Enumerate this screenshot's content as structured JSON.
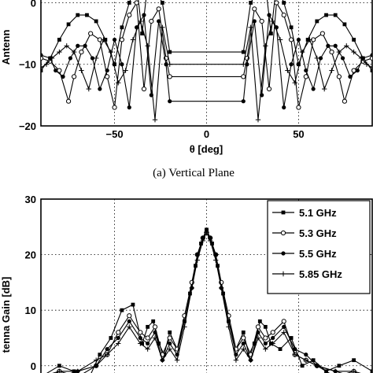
{
  "caption_a": "(a)   Vertical Plane",
  "chart_data": [
    {
      "type": "line",
      "xlabel": "θ [deg]",
      "ylabel": "Antenn",
      "xlim": [
        -90,
        90
      ],
      "ylim": [
        -20,
        3
      ],
      "xticks": [
        -50,
        0,
        50
      ],
      "yticks": [
        -20,
        -10,
        0
      ],
      "grid": true,
      "series": [
        {
          "marker": "square",
          "x": [
            -90,
            -85,
            -80,
            -75,
            -70,
            -65,
            -60,
            -55,
            -50,
            -46,
            -42,
            -38,
            -35,
            -32,
            -28,
            -24,
            -20,
            20,
            24,
            28,
            32,
            35,
            38,
            42,
            46,
            50,
            55,
            60,
            65,
            70,
            75,
            80,
            85,
            90
          ],
          "y": [
            -11,
            -9,
            -6,
            -3.5,
            -2,
            -2,
            -3,
            -6,
            -10,
            -4,
            0,
            3,
            -5,
            3,
            2,
            0,
            -8,
            -8,
            0,
            2,
            3,
            -5,
            3,
            0,
            -4,
            -10,
            -6,
            -3,
            -2,
            -2,
            -3.5,
            -6,
            -9,
            -11
          ]
        },
        {
          "marker": "circle",
          "x": [
            -90,
            -85,
            -80,
            -75,
            -72,
            -68,
            -63,
            -58,
            -54,
            -50,
            -46,
            -42,
            -38,
            -34,
            -30,
            -26,
            -22,
            -20,
            20,
            22,
            26,
            30,
            34,
            38,
            42,
            46,
            50,
            54,
            58,
            63,
            68,
            72,
            75,
            80,
            85,
            90
          ],
          "y": [
            -9,
            -9.5,
            -11,
            -16,
            -12,
            -8,
            -5,
            -6,
            -12,
            -17,
            -6,
            -2,
            0,
            -14,
            -3,
            -1,
            -9,
            -12,
            -12,
            -9,
            -1,
            -3,
            -14,
            0,
            -2,
            -6,
            -17,
            -12,
            -6,
            -5,
            -8,
            -12,
            -16,
            -11,
            -9.5,
            -9
          ]
        },
        {
          "marker": "dot",
          "x": [
            -90,
            -85,
            -82,
            -78,
            -74,
            -70,
            -66,
            -62,
            -58,
            -54,
            -50,
            -46,
            -42,
            -38,
            -34,
            -30,
            -26,
            -22,
            -20,
            20,
            22,
            26,
            30,
            34,
            38,
            42,
            46,
            50,
            54,
            58,
            62,
            66,
            70,
            74,
            78,
            82,
            85,
            90
          ],
          "y": [
            -8.5,
            -9,
            -11,
            -12,
            -9,
            -7,
            -7,
            -9,
            -14,
            -11,
            -6,
            -10,
            -17,
            -4,
            -2,
            -15,
            -3,
            -10,
            -16,
            -16,
            -10,
            -3,
            -15,
            -2,
            -4,
            -17,
            -10,
            -6,
            -11,
            -14,
            -9,
            -7,
            -7,
            -9,
            -12,
            -11,
            -9,
            -8.5
          ]
        },
        {
          "marker": "plus",
          "x": [
            -90,
            -87,
            -84,
            -80,
            -76,
            -72,
            -68,
            -64,
            -60,
            -56,
            -52,
            -48,
            -44,
            -40,
            -36,
            -32,
            -28,
            -24,
            -20,
            20,
            24,
            28,
            32,
            36,
            40,
            44,
            48,
            52,
            56,
            60,
            64,
            68,
            72,
            76,
            80,
            84,
            87,
            90
          ],
          "y": [
            -10.5,
            -10,
            -9,
            -8,
            -7,
            -8,
            -11,
            -14,
            -9,
            -6,
            -8,
            -13,
            -11,
            -6,
            -3,
            -7,
            -19,
            -4,
            -10,
            -10,
            -4,
            -19,
            -7,
            -3,
            -6,
            -11,
            -13,
            -8,
            -6,
            -9,
            -14,
            -11,
            -8,
            -7,
            -8,
            -9,
            -10,
            -10.5
          ]
        }
      ]
    },
    {
      "type": "line",
      "xlabel": "",
      "ylabel": "tenna Gain [dB]",
      "xlim": [
        -90,
        90
      ],
      "ylim": [
        -4,
        30
      ],
      "yticks": [
        0,
        10,
        20,
        30
      ],
      "grid": true,
      "legend": {
        "position": "top-right",
        "entries": [
          {
            "label": "5.1 GHz",
            "marker": "square"
          },
          {
            "label": "5.3 GHz",
            "marker": "circle"
          },
          {
            "label": "5.5 GHz",
            "marker": "dot"
          },
          {
            "label": "5.85 GHz",
            "marker": "plus"
          }
        ]
      },
      "series": [
        {
          "name": "5.1 GHz",
          "marker": "square",
          "x": [
            -90,
            -80,
            -72,
            -65,
            -58,
            -52,
            -46,
            -40,
            -35,
            -32,
            -29,
            -26,
            -23,
            -20,
            -16,
            -12,
            -9,
            -6,
            -3,
            0,
            3,
            6,
            9,
            12,
            16,
            20,
            23,
            26,
            29,
            32,
            35,
            40,
            46,
            52,
            58,
            65,
            72,
            80,
            90
          ],
          "y": [
            -2,
            0,
            -1,
            -3,
            2,
            5,
            10,
            11,
            4,
            7,
            8,
            4,
            2,
            6,
            3,
            8,
            13,
            18,
            22,
            24.5,
            22,
            18,
            13,
            8,
            3,
            6,
            2,
            4,
            8,
            7,
            4,
            3,
            5,
            0,
            1,
            -1,
            0,
            1,
            -1
          ]
        },
        {
          "name": "5.3 GHz",
          "marker": "circle",
          "x": [
            -90,
            -80,
            -70,
            -60,
            -54,
            -48,
            -42,
            -36,
            -32,
            -28,
            -24,
            -20,
            -16,
            -12,
            -8,
            -5,
            -2,
            0,
            2,
            5,
            8,
            12,
            16,
            20,
            24,
            28,
            32,
            36,
            42,
            48,
            54,
            60,
            70,
            80,
            90
          ],
          "y": [
            -3,
            -1,
            -2,
            0,
            2,
            6,
            9,
            6,
            5,
            7,
            2,
            5,
            3,
            9,
            15,
            20,
            23,
            24,
            23,
            20,
            15,
            9,
            3,
            5,
            2,
            7,
            5,
            6,
            8,
            2,
            1,
            0,
            -2,
            -1,
            -3
          ]
        },
        {
          "name": "5.5 GHz",
          "marker": "dot",
          "x": [
            -90,
            -80,
            -70,
            -60,
            -54,
            -48,
            -42,
            -36,
            -32,
            -28,
            -24,
            -20,
            -16,
            -12,
            -8,
            -5,
            -2,
            0,
            2,
            5,
            8,
            12,
            16,
            20,
            24,
            28,
            32,
            36,
            42,
            48,
            54,
            60,
            70,
            80,
            90
          ],
          "y": [
            -3,
            -2,
            -1,
            0,
            3,
            5,
            8,
            5,
            4,
            6,
            1,
            4,
            2,
            8,
            14,
            20,
            23,
            24.5,
            23,
            20,
            14,
            8,
            2,
            4,
            1,
            6,
            4,
            5,
            7,
            3,
            2,
            0,
            -1,
            -2,
            -3
          ]
        },
        {
          "name": "5.85 GHz",
          "marker": "plus",
          "x": [
            -90,
            -80,
            -70,
            -60,
            -54,
            -48,
            -42,
            -36,
            -32,
            -28,
            -24,
            -20,
            -16,
            -12,
            -8,
            -5,
            -2,
            0,
            2,
            5,
            8,
            12,
            16,
            20,
            24,
            28,
            32,
            36,
            42,
            48,
            54,
            60,
            70,
            80,
            90
          ],
          "y": [
            -2,
            -1,
            -1,
            1,
            2,
            4,
            7,
            4,
            3,
            5,
            1,
            3,
            1,
            7,
            14,
            19,
            22.5,
            24,
            22.5,
            19,
            14,
            7,
            1,
            3,
            1,
            5,
            3,
            4,
            6,
            2,
            1,
            0,
            -1,
            -1,
            -2
          ]
        }
      ]
    }
  ]
}
